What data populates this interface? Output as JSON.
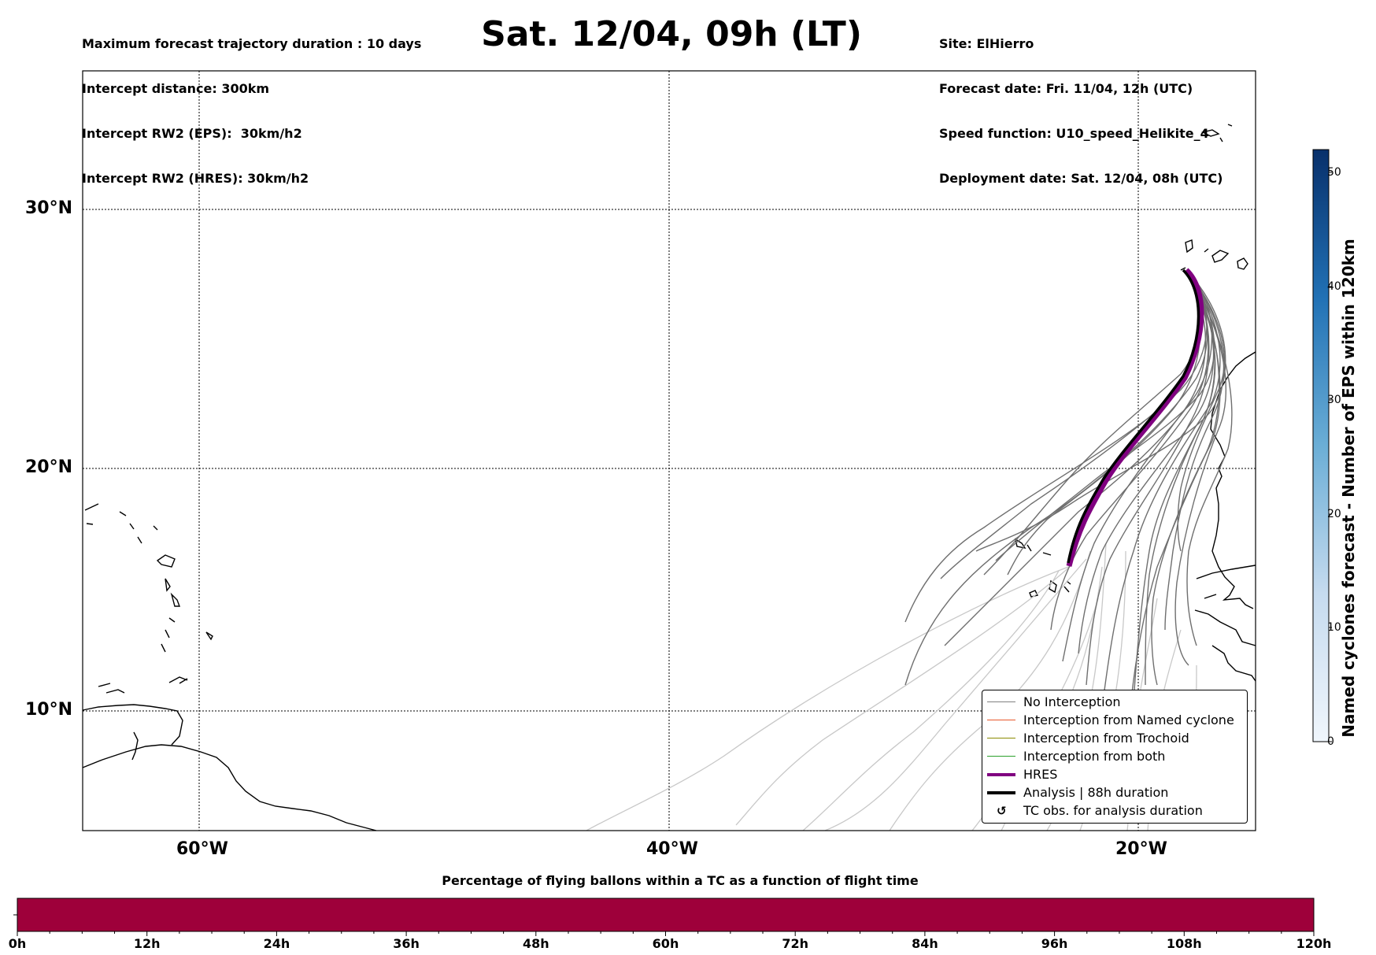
{
  "header": {
    "left": [
      "Maximum forecast trajectory duration : 10 days",
      "Intercept distance: 300km",
      "Intercept RW2 (EPS):  30km/h2",
      "Intercept RW2 (HRES): 30km/h2"
    ],
    "title": "Sat. 12/04, 09h (LT)",
    "right": [
      "Site: ElHierro",
      "Forecast date: Fri. 11/04, 12h (UTC)",
      "Speed function: U10_speed_Helikite_4",
      "Deployment date: Sat. 12/04, 08h (UTC)"
    ]
  },
  "map": {
    "lon_labels": [
      "60°W",
      "40°W",
      "20°W"
    ],
    "lat_labels": [
      "30°N",
      "20°N",
      "10°N"
    ],
    "extent": {
      "lon": [
        -65,
        -15
      ],
      "lat": [
        5.4,
        34.7
      ]
    }
  },
  "legend": [
    {
      "label": "No Interception",
      "color": "#808080"
    },
    {
      "label": "Interception from Named cyclone",
      "color": "#e8582c"
    },
    {
      "label": "Interception from Trochoid",
      "color": "#8b8b00"
    },
    {
      "label": "Interception from both",
      "color": "#2ca02c"
    },
    {
      "label": "HRES",
      "color": "#800080"
    },
    {
      "label": "Analysis | 88h duration",
      "color": "#000000"
    },
    {
      "label": "TC obs. for analysis duration",
      "icon": "cyclone-symbol-icon"
    }
  ],
  "colorbar": {
    "label": "Named cyclones forecast - Number of EPS within 120km",
    "ticks": [
      "0",
      "10",
      "20",
      "30",
      "40",
      "50"
    ],
    "range": [
      0,
      52
    ],
    "low_color": "#f0f6fc",
    "high_color": "#08306b"
  },
  "histogram": {
    "title": "Percentage of flying ballons within a TC as a function of flight time",
    "ticks": [
      "0h",
      "12h",
      "24h",
      "36h",
      "48h",
      "60h",
      "72h",
      "84h",
      "96h",
      "108h",
      "120h"
    ],
    "fill_color": "#9e003a"
  }
}
